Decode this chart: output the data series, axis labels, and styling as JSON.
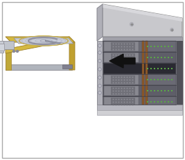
{
  "bg_color": "#ffffff",
  "border_color": "#aaaaaa",
  "chassis_top": "#cccccc",
  "chassis_top_dark": "#b0b0b4",
  "chassis_front_left": "#a8a8b0",
  "chassis_inner_back": "#808090",
  "chassis_bottom_face": "#b8b8c0",
  "chassis_rail_color": "#c0c0c8",
  "bay_dark": "#606068",
  "bay_medium": "#787880",
  "bay_slot_empty": "#404048",
  "green_color": "#5aaa44",
  "connector_brown": "#8b5a2b",
  "drive_gold": "#d4b840",
  "drive_gold_side": "#c0a030",
  "drive_silver": "#c8ccd4",
  "drive_disk_light": "#c8ccd8",
  "drive_disk_dark": "#a8aab8",
  "arrow_color": "#111111",
  "tray_silver": "#b8bcc4",
  "tray_handle": "#c8ccd4",
  "screw_color": "#b0b0b8"
}
